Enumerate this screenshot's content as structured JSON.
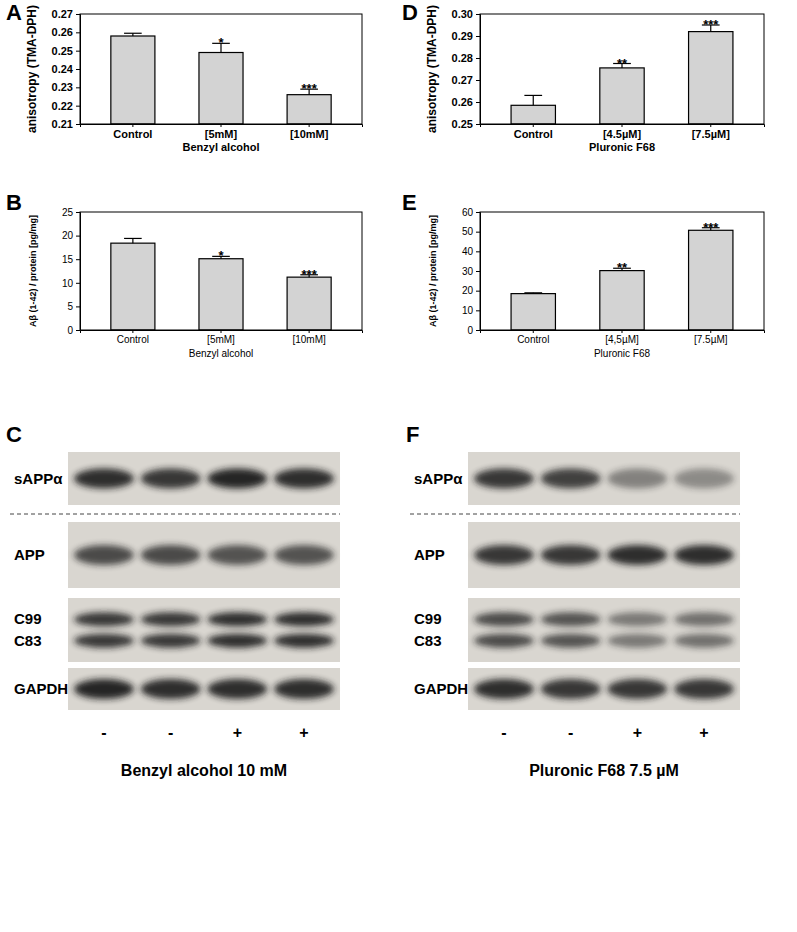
{
  "chart_data": [
    {
      "type": "bar",
      "title": "A",
      "y_label": "anisotropy (TMA-DPH)",
      "x_label": "Benzyl alcohol",
      "categories": [
        "Control",
        "[5mM]",
        "[10mM]"
      ],
      "values": [
        0.258,
        0.249,
        0.226
      ],
      "errors": [
        0.0015,
        0.005,
        0.003
      ],
      "color": "#d3d3d3",
      "ylim": [
        0.21,
        0.27
      ],
      "yticks": [
        0.21,
        0.22,
        0.23,
        0.24,
        0.25,
        0.26,
        0.27
      ],
      "annotations": [
        {
          "x": "[5mM]",
          "text": "*"
        },
        {
          "x": "[10mM]",
          "text": "***"
        }
      ]
    },
    {
      "type": "bar",
      "title": "B",
      "y_label": "Aβ (1-42) / protein [pg/mg]",
      "x_label": "Benzyl alcohol",
      "categories": [
        "Control",
        "[5mM]",
        "[10mM]"
      ],
      "values": [
        18.4,
        15.1,
        11.2
      ],
      "errors": [
        1.0,
        0.5,
        0.5
      ],
      "color": "#d3d3d3",
      "ylim": [
        0,
        25
      ],
      "yticks": [
        0,
        5,
        10,
        15,
        20,
        25
      ],
      "annotations": [
        {
          "x": "[5mM]",
          "text": "*"
        },
        {
          "x": "[10mM]",
          "text": "***"
        }
      ]
    },
    {
      "type": "bar",
      "title": "D",
      "y_label": "anisotropy (TMA-DPH)",
      "x_label": "Pluronic F68",
      "categories": [
        "Control",
        "[4.5µM]",
        "[7.5µM]"
      ],
      "values": [
        0.2585,
        0.2755,
        0.292
      ],
      "errors": [
        0.0045,
        0.002,
        0.003
      ],
      "color": "#d3d3d3",
      "ylim": [
        0.25,
        0.3
      ],
      "yticks": [
        0.25,
        0.26,
        0.27,
        0.28,
        0.29,
        {
          "value": 0.3,
          "label": "0.30"
        }
      ],
      "annotations": [
        {
          "x": "[4.5µM]",
          "text": "**"
        },
        {
          "x": "[7.5µM]",
          "text": "***"
        }
      ]
    },
    {
      "type": "bar",
      "title": "E",
      "y_label": "Aβ (1-42) / protein [pg/mg]",
      "x_label": "Pluronic F68",
      "categories": [
        "Control",
        "[4,5µM]",
        "[7.5µM]"
      ],
      "values": [
        18.5,
        30.2,
        50.7
      ],
      "errors": [
        0.4,
        1.2,
        1.3
      ],
      "color": "#d3d3d3",
      "ylim": [
        0,
        60
      ],
      "yticks": [
        0,
        10,
        20,
        30,
        40,
        50,
        60
      ],
      "annotations": [
        {
          "x": "[4,5µM]",
          "text": "**"
        },
        {
          "x": "[7.5µM]",
          "text": "***"
        }
      ]
    }
  ],
  "blots": [
    {
      "title": "C",
      "rows": [
        [
          "sAPPα"
        ],
        [
          "APP"
        ],
        [
          "C99",
          "C83"
        ],
        [
          "GAPDH"
        ]
      ],
      "lanes": [
        "-",
        "-",
        "+",
        "+"
      ],
      "caption": "Benzyl alcohol 10 mM"
    },
    {
      "title": "F",
      "rows": [
        [
          "sAPPα"
        ],
        [
          "APP"
        ],
        [
          "C99",
          "C83"
        ],
        [
          "GAPDH"
        ]
      ],
      "lanes": [
        "-",
        "-",
        "+",
        "+"
      ],
      "caption": "Pluronic F68 7.5 µM"
    }
  ]
}
